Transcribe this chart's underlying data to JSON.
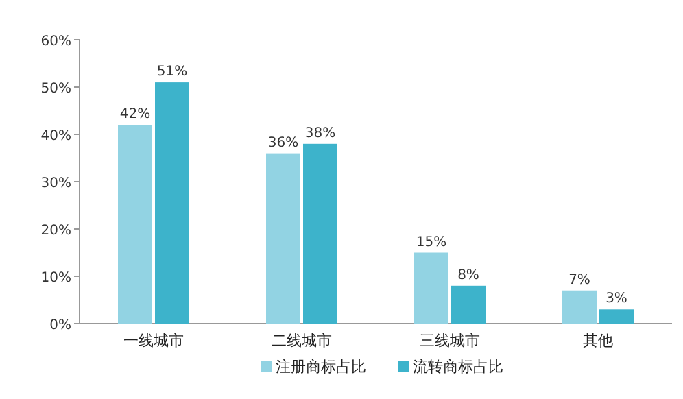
{
  "chart_data": {
    "type": "bar",
    "categories": [
      "一线城市",
      "二线城市",
      "三线城市",
      "其他"
    ],
    "series": [
      {
        "name": "注册商标占比",
        "color": "#92d3e3",
        "values": [
          42,
          36,
          15,
          7
        ],
        "value_labels": [
          "42%",
          "36%",
          "15%",
          "7%"
        ]
      },
      {
        "name": "流转商标占比",
        "color": "#3db3cb",
        "values": [
          51,
          38,
          8,
          3
        ],
        "value_labels": [
          "51%",
          "38%",
          "8%",
          "3%"
        ]
      }
    ],
    "ylim": [
      0,
      60
    ],
    "yticks": [
      {
        "value": 0,
        "label": "0%"
      },
      {
        "value": 10,
        "label": "10%"
      },
      {
        "value": 20,
        "label": "20%"
      },
      {
        "value": 30,
        "label": "30%"
      },
      {
        "value": 40,
        "label": "40%"
      },
      {
        "value": 50,
        "label": "50%"
      },
      {
        "value": 60,
        "label": "60%"
      }
    ],
    "legend": "bottom"
  }
}
